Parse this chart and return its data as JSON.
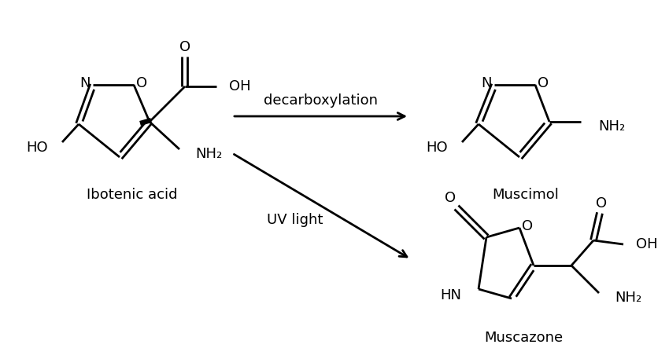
{
  "background_color": "#ffffff",
  "text_color": "#000000",
  "figsize": [
    8.5,
    4.43
  ],
  "dpi": 100,
  "ibotenic_label": "Ibotenic acid",
  "muscimol_label": "Muscimol",
  "muscazone_label": "Muscazone",
  "decarboxylation_label": "decarboxylation",
  "uvlight_label": "UV light",
  "lw": 2.0,
  "fontsize": 13
}
